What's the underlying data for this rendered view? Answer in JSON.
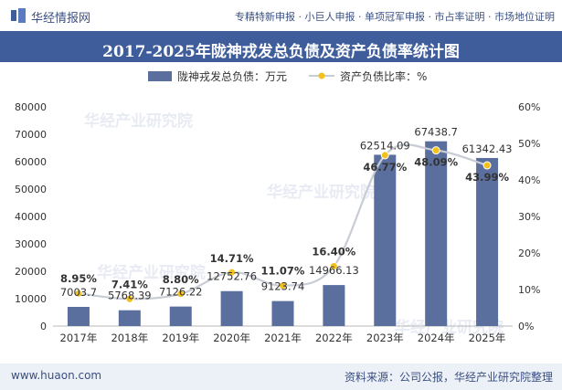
{
  "header": {
    "brand": "华经情报网",
    "services": "专精特新申报 · 小巨人申报 · 单项冠军申报 · 市占率证明 · 市场地位证明",
    "logo_icon": "huajing-logo-icon"
  },
  "footer": {
    "url": "www.huaon.com",
    "source": "资料来源：公司公报，华经产业研究院整理"
  },
  "watermark": "华经产业研究院",
  "colors": {
    "bar": "#5b6f9e",
    "line": "#c8ccd4",
    "marker": "#f2c11e",
    "title_bg": "#3f5d9b"
  },
  "chart_data": {
    "type": "bar+line",
    "title": "2017-2025年陇神戎发总负债及资产负债率统计图",
    "categories": [
      "2017年",
      "2018年",
      "2019年",
      "2020年",
      "2021年",
      "2022年",
      "2023年",
      "2024年",
      "2025年"
    ],
    "series": [
      {
        "name": "陇神戎发总负债：万元",
        "type": "bar",
        "axis": "left",
        "values": [
          7003.7,
          5768.39,
          7126.22,
          12752.76,
          9123.74,
          14966.13,
          62514.09,
          67438.7,
          61342.43
        ],
        "labels": [
          "7003.7",
          "5768.39",
          "7126.22",
          "12752.76",
          "9123.74",
          "14966.13",
          "62514.09",
          "67438.7",
          "61342.43"
        ]
      },
      {
        "name": "资产负债比率：%",
        "type": "line",
        "axis": "right",
        "values": [
          8.95,
          7.41,
          8.8,
          14.71,
          11.07,
          16.4,
          46.77,
          48.09,
          43.99
        ],
        "labels": [
          "8.95%",
          "7.41%",
          "8.80%",
          "14.71%",
          "11.07%",
          "16.40%",
          "46.77%",
          "48.09%",
          "43.99%"
        ]
      }
    ],
    "y_left": {
      "min": 0,
      "max": 80000,
      "step": 10000,
      "ticks": [
        "0",
        "10000",
        "20000",
        "30000",
        "40000",
        "50000",
        "60000",
        "70000",
        "80000"
      ]
    },
    "y_right": {
      "min": 0,
      "max": 60,
      "step": 10,
      "ticks": [
        "0%",
        "10%",
        "20%",
        "30%",
        "40%",
        "50%",
        "60%"
      ]
    },
    "grid": false,
    "legend": "top-center"
  }
}
